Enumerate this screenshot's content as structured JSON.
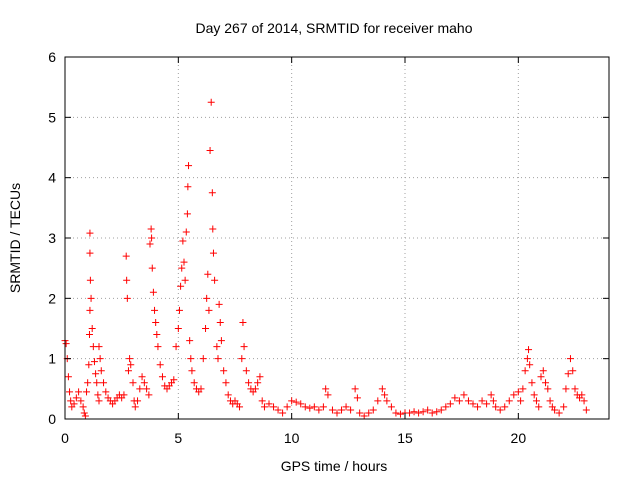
{
  "chart_data": {
    "type": "scatter",
    "title": "Day 267 of 2014, SRMTID for receiver maho",
    "xlabel": "GPS time / hours",
    "ylabel": "SRMTID / TECUs",
    "xlim": [
      0,
      24
    ],
    "ylim": [
      0,
      6
    ],
    "xticks": [
      0,
      5,
      10,
      15,
      20
    ],
    "yticks": [
      0,
      1,
      2,
      3,
      4,
      5,
      6
    ],
    "grid": true,
    "marker": "+",
    "marker_color": "#ff0000",
    "series": [
      {
        "name": "SRMTID",
        "points": [
          [
            0.0,
            1.3
          ],
          [
            0.05,
            1.25
          ],
          [
            0.1,
            1.0
          ],
          [
            0.15,
            0.7
          ],
          [
            0.2,
            0.45
          ],
          [
            0.25,
            0.3
          ],
          [
            0.3,
            0.2
          ],
          [
            0.4,
            0.25
          ],
          [
            0.5,
            0.35
          ],
          [
            0.6,
            0.45
          ],
          [
            0.7,
            0.3
          ],
          [
            0.8,
            0.2
          ],
          [
            0.85,
            0.1
          ],
          [
            0.9,
            0.05
          ],
          [
            0.95,
            0.45
          ],
          [
            1.0,
            0.6
          ],
          [
            1.05,
            0.9
          ],
          [
            1.08,
            1.4
          ],
          [
            1.1,
            1.8
          ],
          [
            1.12,
            2.3
          ],
          [
            1.1,
            2.75
          ],
          [
            1.1,
            3.08
          ],
          [
            1.15,
            2.0
          ],
          [
            1.2,
            1.5
          ],
          [
            1.25,
            1.2
          ],
          [
            1.3,
            0.95
          ],
          [
            1.35,
            0.75
          ],
          [
            1.4,
            0.6
          ],
          [
            1.45,
            0.4
          ],
          [
            1.5,
            0.3
          ],
          [
            1.5,
            1.2
          ],
          [
            1.55,
            1.0
          ],
          [
            1.6,
            0.8
          ],
          [
            1.7,
            0.6
          ],
          [
            1.8,
            0.45
          ],
          [
            1.9,
            0.35
          ],
          [
            2.0,
            0.3
          ],
          [
            2.1,
            0.25
          ],
          [
            2.2,
            0.3
          ],
          [
            2.3,
            0.35
          ],
          [
            2.4,
            0.4
          ],
          [
            2.5,
            0.35
          ],
          [
            2.6,
            0.4
          ],
          [
            2.7,
            2.7
          ],
          [
            2.72,
            2.3
          ],
          [
            2.75,
            2.0
          ],
          [
            2.8,
            0.8
          ],
          [
            2.85,
            1.0
          ],
          [
            2.9,
            0.9
          ],
          [
            3.0,
            0.6
          ],
          [
            3.05,
            0.3
          ],
          [
            3.1,
            0.2
          ],
          [
            3.2,
            0.3
          ],
          [
            3.3,
            0.5
          ],
          [
            3.4,
            0.7
          ],
          [
            3.5,
            0.6
          ],
          [
            3.6,
            0.5
          ],
          [
            3.7,
            0.4
          ],
          [
            3.75,
            2.9
          ],
          [
            3.8,
            3.15
          ],
          [
            3.82,
            3.0
          ],
          [
            3.85,
            2.5
          ],
          [
            3.9,
            2.1
          ],
          [
            3.95,
            1.8
          ],
          [
            4.0,
            1.6
          ],
          [
            4.05,
            1.4
          ],
          [
            4.1,
            1.2
          ],
          [
            4.2,
            0.9
          ],
          [
            4.3,
            0.7
          ],
          [
            4.4,
            0.55
          ],
          [
            4.5,
            0.5
          ],
          [
            4.6,
            0.55
          ],
          [
            4.7,
            0.6
          ],
          [
            4.8,
            0.65
          ],
          [
            4.9,
            1.2
          ],
          [
            5.0,
            1.5
          ],
          [
            5.05,
            1.8
          ],
          [
            5.1,
            2.2
          ],
          [
            5.15,
            2.5
          ],
          [
            5.2,
            2.95
          ],
          [
            5.25,
            2.6
          ],
          [
            5.3,
            2.3
          ],
          [
            5.35,
            3.1
          ],
          [
            5.4,
            3.4
          ],
          [
            5.42,
            3.85
          ],
          [
            5.45,
            4.2
          ],
          [
            5.5,
            1.3
          ],
          [
            5.55,
            1.0
          ],
          [
            5.6,
            0.8
          ],
          [
            5.7,
            0.6
          ],
          [
            5.8,
            0.5
          ],
          [
            5.9,
            0.45
          ],
          [
            6.0,
            0.5
          ],
          [
            6.1,
            1.0
          ],
          [
            6.2,
            1.5
          ],
          [
            6.25,
            2.0
          ],
          [
            6.3,
            2.4
          ],
          [
            6.35,
            1.8
          ],
          [
            6.4,
            4.45
          ],
          [
            6.45,
            5.25
          ],
          [
            6.5,
            3.75
          ],
          [
            6.52,
            3.15
          ],
          [
            6.55,
            2.75
          ],
          [
            6.6,
            2.3
          ],
          [
            6.7,
            1.2
          ],
          [
            6.75,
            1.0
          ],
          [
            6.8,
            1.9
          ],
          [
            6.85,
            1.6
          ],
          [
            6.9,
            1.3
          ],
          [
            7.0,
            0.8
          ],
          [
            7.1,
            0.6
          ],
          [
            7.2,
            0.4
          ],
          [
            7.3,
            0.3
          ],
          [
            7.4,
            0.25
          ],
          [
            7.5,
            0.3
          ],
          [
            7.6,
            0.25
          ],
          [
            7.7,
            0.2
          ],
          [
            7.8,
            1.0
          ],
          [
            7.85,
            1.6
          ],
          [
            7.9,
            1.2
          ],
          [
            8.0,
            0.8
          ],
          [
            8.1,
            0.6
          ],
          [
            8.2,
            0.5
          ],
          [
            8.3,
            0.45
          ],
          [
            8.4,
            0.5
          ],
          [
            8.5,
            0.6
          ],
          [
            8.6,
            0.7
          ],
          [
            8.7,
            0.3
          ],
          [
            8.8,
            0.2
          ],
          [
            9.0,
            0.25
          ],
          [
            9.2,
            0.2
          ],
          [
            9.4,
            0.15
          ],
          [
            9.6,
            0.1
          ],
          [
            9.8,
            0.2
          ],
          [
            10.0,
            0.3
          ],
          [
            10.2,
            0.28
          ],
          [
            10.4,
            0.25
          ],
          [
            10.6,
            0.2
          ],
          [
            10.8,
            0.18
          ],
          [
            11.0,
            0.2
          ],
          [
            11.2,
            0.15
          ],
          [
            11.4,
            0.2
          ],
          [
            11.5,
            0.5
          ],
          [
            11.6,
            0.4
          ],
          [
            11.8,
            0.15
          ],
          [
            12.0,
            0.1
          ],
          [
            12.2,
            0.15
          ],
          [
            12.4,
            0.2
          ],
          [
            12.6,
            0.15
          ],
          [
            12.8,
            0.5
          ],
          [
            12.9,
            0.35
          ],
          [
            13.0,
            0.1
          ],
          [
            13.2,
            0.05
          ],
          [
            13.4,
            0.1
          ],
          [
            13.6,
            0.15
          ],
          [
            13.8,
            0.3
          ],
          [
            14.0,
            0.5
          ],
          [
            14.1,
            0.4
          ],
          [
            14.2,
            0.3
          ],
          [
            14.4,
            0.2
          ],
          [
            14.6,
            0.1
          ],
          [
            14.8,
            0.08
          ],
          [
            15.0,
            0.1
          ],
          [
            15.2,
            0.1
          ],
          [
            15.4,
            0.12
          ],
          [
            15.6,
            0.1
          ],
          [
            15.8,
            0.12
          ],
          [
            16.0,
            0.15
          ],
          [
            16.2,
            0.1
          ],
          [
            16.4,
            0.12
          ],
          [
            16.6,
            0.15
          ],
          [
            16.8,
            0.2
          ],
          [
            17.0,
            0.25
          ],
          [
            17.2,
            0.35
          ],
          [
            17.4,
            0.3
          ],
          [
            17.6,
            0.4
          ],
          [
            17.8,
            0.3
          ],
          [
            18.0,
            0.25
          ],
          [
            18.2,
            0.2
          ],
          [
            18.4,
            0.3
          ],
          [
            18.6,
            0.25
          ],
          [
            18.8,
            0.4
          ],
          [
            18.9,
            0.3
          ],
          [
            19.0,
            0.2
          ],
          [
            19.2,
            0.15
          ],
          [
            19.4,
            0.2
          ],
          [
            19.6,
            0.3
          ],
          [
            19.8,
            0.4
          ],
          [
            20.0,
            0.45
          ],
          [
            20.1,
            0.3
          ],
          [
            20.2,
            0.5
          ],
          [
            20.3,
            0.8
          ],
          [
            20.4,
            1.0
          ],
          [
            20.45,
            1.15
          ],
          [
            20.5,
            0.9
          ],
          [
            20.6,
            0.6
          ],
          [
            20.7,
            0.4
          ],
          [
            20.8,
            0.3
          ],
          [
            20.9,
            0.2
          ],
          [
            21.0,
            0.7
          ],
          [
            21.1,
            0.8
          ],
          [
            21.2,
            0.6
          ],
          [
            21.3,
            0.5
          ],
          [
            21.4,
            0.3
          ],
          [
            21.5,
            0.2
          ],
          [
            21.6,
            0.15
          ],
          [
            21.8,
            0.1
          ],
          [
            22.0,
            0.2
          ],
          [
            22.1,
            0.5
          ],
          [
            22.2,
            0.75
          ],
          [
            22.3,
            1.0
          ],
          [
            22.4,
            0.8
          ],
          [
            22.5,
            0.5
          ],
          [
            22.6,
            0.4
          ],
          [
            22.7,
            0.35
          ],
          [
            22.8,
            0.4
          ],
          [
            22.9,
            0.3
          ],
          [
            23.0,
            0.15
          ]
        ]
      }
    ]
  }
}
